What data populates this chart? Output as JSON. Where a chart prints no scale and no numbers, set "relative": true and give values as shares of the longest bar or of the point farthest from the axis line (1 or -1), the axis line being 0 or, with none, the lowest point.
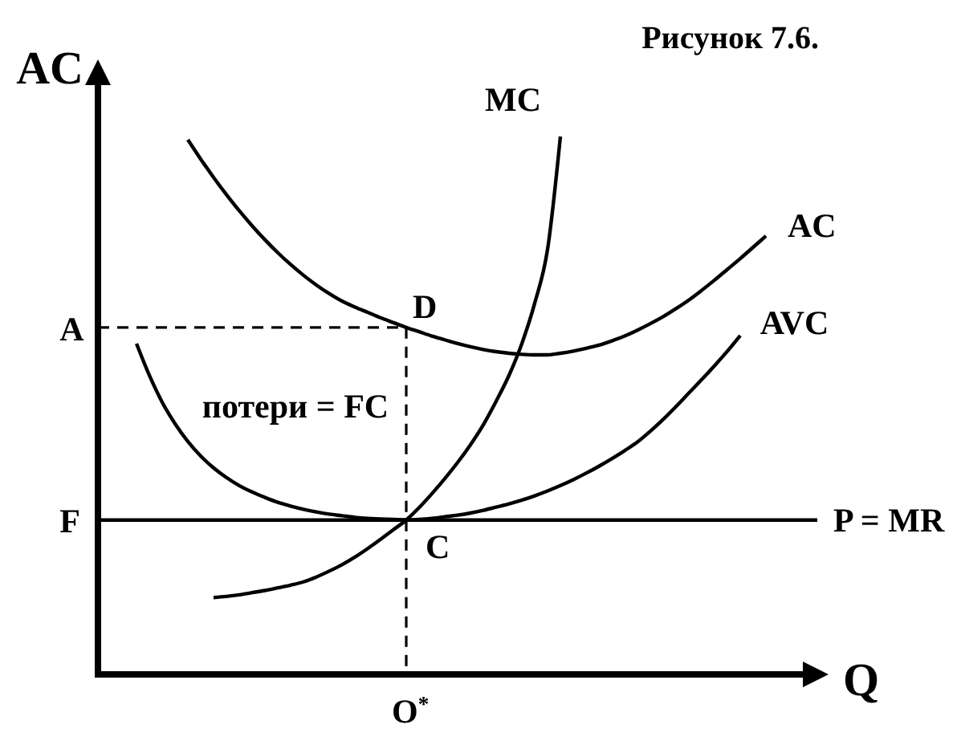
{
  "chart_data": {
    "type": "line",
    "title": "Рисунок 7.6.",
    "xlabel": "Q",
    "ylabel": "AC",
    "relative": true,
    "categories": [
      null,
      null,
      null,
      null,
      null,
      null,
      null,
      null,
      null,
      null,
      null,
      null,
      null,
      null,
      null,
      null,
      null,
      null,
      null,
      null,
      null,
      null,
      null,
      null,
      null,
      null,
      null,
      null,
      null,
      null,
      null,
      null,
      null,
      null,
      null,
      null,
      null,
      null,
      null,
      null,
      null,
      null,
      null,
      null,
      null,
      null,
      null,
      null,
      null,
      null,
      null,
      null,
      null,
      null,
      null,
      null,
      null
    ],
    "series": [
      {
        "name": "MC",
        "color": "#000000",
        "values": [
          null,
          null,
          null,
          null,
          null,
          null,
          null,
          null,
          null,
          0.143,
          0.145,
          0.148,
          0.152,
          0.156,
          0.161,
          0.166,
          0.172,
          0.181,
          0.192,
          0.204,
          0.218,
          0.234,
          0.251,
          0.269,
          0.287,
          0.31,
          0.336,
          0.364,
          0.394,
          0.427,
          0.464,
          0.508,
          0.556,
          0.615,
          0.69,
          0.79,
          1,
          null,
          null,
          null,
          null,
          null,
          null,
          null,
          null,
          null,
          null,
          null,
          null,
          null,
          null,
          null,
          null,
          null,
          null,
          null,
          null
        ]
      },
      {
        "name": "AC",
        "color": "#000000",
        "values": [
          null,
          null,
          null,
          null,
          null,
          null,
          null,
          0.994,
          0.958,
          0.924,
          0.892,
          0.862,
          0.834,
          0.808,
          0.784,
          0.762,
          0.742,
          0.724,
          0.708,
          0.694,
          0.683,
          0.673,
          0.663,
          0.654,
          0.645,
          0.637,
          0.629,
          0.622,
          0.615,
          0.609,
          0.604,
          0.6,
          0.597,
          0.595,
          0.594,
          0.594,
          0.597,
          0.601,
          0.606,
          0.612,
          0.62,
          0.629,
          0.64,
          0.652,
          0.665,
          0.68,
          0.696,
          0.714,
          0.733,
          0.753,
          0.773,
          0.794,
          0.815,
          null,
          null,
          null,
          null
        ]
      },
      {
        "name": "AVC",
        "color": "#000000",
        "values": [
          null,
          null,
          null,
          0.615,
          0.556,
          0.506,
          0.466,
          0.433,
          0.406,
          0.384,
          0.366,
          0.351,
          0.339,
          0.329,
          0.32,
          0.313,
          0.307,
          0.302,
          0.298,
          0.295,
          0.292,
          0.29,
          0.289,
          0.288,
          0.287,
          0.288,
          0.29,
          0.293,
          0.296,
          0.3,
          0.305,
          0.311,
          0.317,
          0.324,
          0.332,
          0.341,
          0.351,
          0.362,
          0.374,
          0.387,
          0.401,
          0.416,
          0.432,
          0.452,
          0.474,
          0.498,
          0.523,
          0.548,
          0.574,
          0.601,
          0.63,
          null,
          null,
          null,
          null,
          null,
          null
        ]
      },
      {
        "type": "step",
        "color": "#000000",
        "line_style": "dashed",
        "values": [
          0.645,
          0.645,
          0.645,
          0.645,
          0.645,
          0.645,
          0.645,
          0.645,
          0.645,
          0.645,
          0.645,
          0.645,
          0.645,
          0.645,
          0.645,
          0.645,
          0.645,
          0.645,
          0.645,
          0.645,
          0.645,
          0.645,
          0.645,
          0.645,
          0,
          null,
          null,
          null,
          null,
          null,
          null,
          null,
          null,
          null,
          null,
          null,
          null,
          null,
          null,
          null,
          null,
          null,
          null,
          null,
          null,
          null,
          null,
          null,
          null,
          null,
          null,
          null,
          null,
          null,
          null,
          null,
          null
        ]
      }
    ],
    "ref_lines": [
      {
        "axis": "y",
        "value": 0.287,
        "label": "P = MR",
        "color": "#000000"
      }
    ],
    "annotations": [
      "A",
      "F",
      {
        "text": "D",
        "y": 0.645
      },
      {
        "text": "C",
        "y": 0.287
      },
      {
        "text": "O$^{*}$",
        "y": 0
      },
      "потери = FC"
    ]
  }
}
